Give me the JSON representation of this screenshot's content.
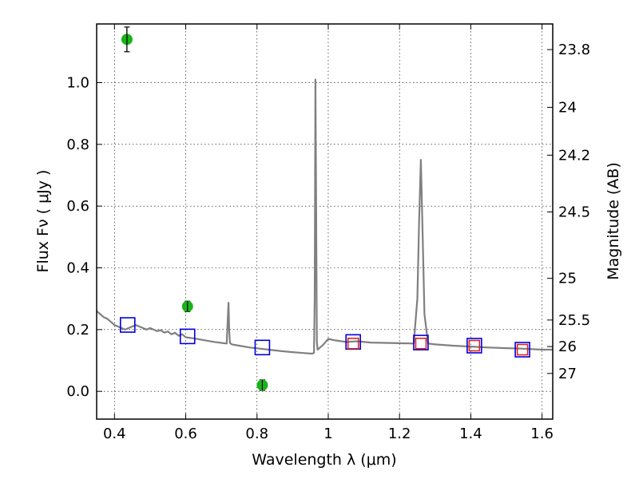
{
  "chart_data": {
    "type": "scatter",
    "xlabel": "Wavelength  λ (μm)",
    "ylabel": "Flux  Fν  ( μJy )",
    "y2label": "Magnitude (AB)",
    "xlim": [
      0.35,
      1.63
    ],
    "ylim": [
      -0.09,
      1.19
    ],
    "grid": true,
    "x_ticks": [
      0.4,
      0.6,
      0.8,
      1.0,
      1.2,
      1.4,
      1.6
    ],
    "x_tick_labels": [
      "0.4",
      "0.6",
      "0.8",
      "1",
      "1.2",
      "1.4",
      "1.6"
    ],
    "y_ticks": [
      0.0,
      0.2,
      0.4,
      0.6,
      0.8,
      1.0
    ],
    "y_tick_labels": [
      "0.0",
      "0.2",
      "0.4",
      "0.6",
      "0.8",
      "1.0"
    ],
    "y2_ticks": [
      {
        "label": "23.8",
        "flux": 1.107
      },
      {
        "label": "24",
        "flux": 0.92
      },
      {
        "label": "24.2",
        "flux": 0.765
      },
      {
        "label": "24.5",
        "flux": 0.581
      },
      {
        "label": "25",
        "flux": 0.366
      },
      {
        "label": "25.5",
        "flux": 0.231
      },
      {
        "label": "26",
        "flux": 0.145
      },
      {
        "label": "27",
        "flux": 0.058
      }
    ],
    "model_spectrum": {
      "color": "#808080",
      "x": [
        0.35,
        0.355,
        0.36,
        0.365,
        0.37,
        0.38,
        0.39,
        0.4,
        0.41,
        0.42,
        0.43,
        0.44,
        0.45,
        0.46,
        0.47,
        0.48,
        0.49,
        0.5,
        0.51,
        0.52,
        0.53,
        0.54,
        0.55,
        0.56,
        0.57,
        0.58,
        0.59,
        0.6,
        0.62,
        0.64,
        0.66,
        0.68,
        0.7,
        0.715,
        0.72,
        0.722,
        0.724,
        0.726,
        0.73,
        0.75,
        0.78,
        0.81,
        0.84,
        0.87,
        0.9,
        0.93,
        0.955,
        0.96,
        0.962,
        0.964,
        0.966,
        0.968,
        0.97,
        0.975,
        0.985,
        1.0,
        1.02,
        1.05,
        1.08,
        1.12,
        1.16,
        1.2,
        1.24,
        1.25,
        1.255,
        1.26,
        1.265,
        1.27,
        1.28,
        1.3,
        1.35,
        1.4,
        1.45,
        1.5,
        1.55,
        1.6,
        1.63
      ],
      "y": [
        0.26,
        0.255,
        0.25,
        0.245,
        0.24,
        0.235,
        0.225,
        0.215,
        0.21,
        0.205,
        0.2,
        0.205,
        0.21,
        0.215,
        0.21,
        0.205,
        0.2,
        0.205,
        0.2,
        0.195,
        0.198,
        0.19,
        0.194,
        0.185,
        0.19,
        0.18,
        0.185,
        0.175,
        0.172,
        0.168,
        0.164,
        0.16,
        0.157,
        0.155,
        0.287,
        0.2,
        0.158,
        0.155,
        0.152,
        0.148,
        0.142,
        0.138,
        0.134,
        0.13,
        0.127,
        0.124,
        0.122,
        0.125,
        0.3,
        1.01,
        0.6,
        0.16,
        0.135,
        0.14,
        0.15,
        0.17,
        0.165,
        0.16,
        0.162,
        0.158,
        0.157,
        0.156,
        0.155,
        0.3,
        0.55,
        0.75,
        0.5,
        0.25,
        0.155,
        0.152,
        0.148,
        0.145,
        0.142,
        0.14,
        0.138,
        0.135,
        0.135
      ]
    },
    "series": [
      {
        "marker": "circle",
        "color": "#1ab31a",
        "x": [
          0.435,
          0.605,
          0.815
        ],
        "y": [
          1.14,
          0.275,
          0.02
        ],
        "err": [
          0.04,
          0.017,
          0.017
        ]
      },
      {
        "marker": "square-open",
        "color": "#0000dd",
        "x": [
          0.437,
          0.605,
          0.815,
          1.07,
          1.26,
          1.41,
          1.545
        ],
        "y": [
          0.215,
          0.178,
          0.142,
          0.16,
          0.158,
          0.148,
          0.135
        ]
      },
      {
        "marker": "square-open",
        "color": "#dd2222",
        "x": [
          1.07,
          1.26,
          1.41,
          1.545
        ],
        "y": [
          0.155,
          0.155,
          0.148,
          0.135
        ]
      }
    ]
  }
}
